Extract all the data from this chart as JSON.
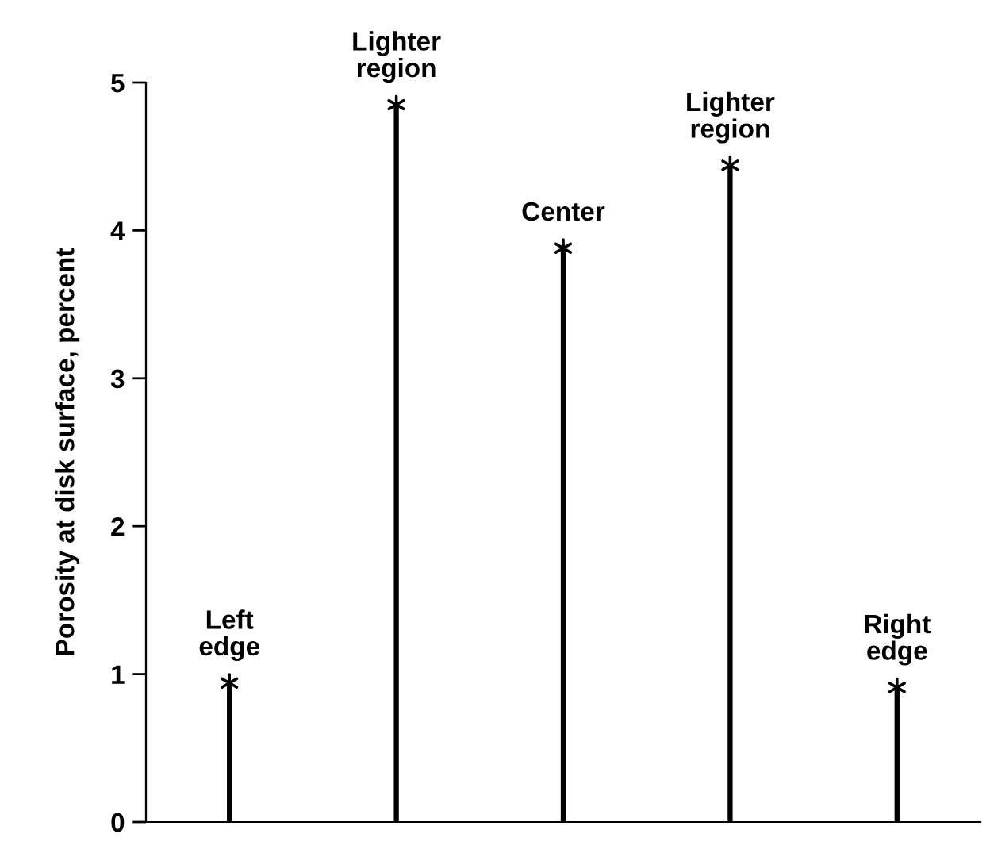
{
  "chart_data": {
    "type": "bar",
    "ylabel": "Porosity at disk surface, percent",
    "categories": [
      null,
      null,
      null,
      null,
      null
    ],
    "series": [
      {
        "color": "#000000",
        "values": [
          0.94,
          4.85,
          3.88,
          4.44,
          0.91
        ]
      },
      {
        "type": "scatter",
        "color": "#000000",
        "marker": "cross",
        "values": [
          0.94,
          4.85,
          3.88,
          4.44,
          0.91
        ]
      }
    ],
    "ylim": [
      0,
      5
    ],
    "yticks": [
      0,
      1,
      2,
      3,
      4,
      5
    ],
    "tick_labels": "y",
    "grid": false,
    "annotations": [
      "Left\nedge",
      "Lighter\nregion",
      "Center",
      "Lighter\nregion",
      "Right\nedge"
    ]
  }
}
